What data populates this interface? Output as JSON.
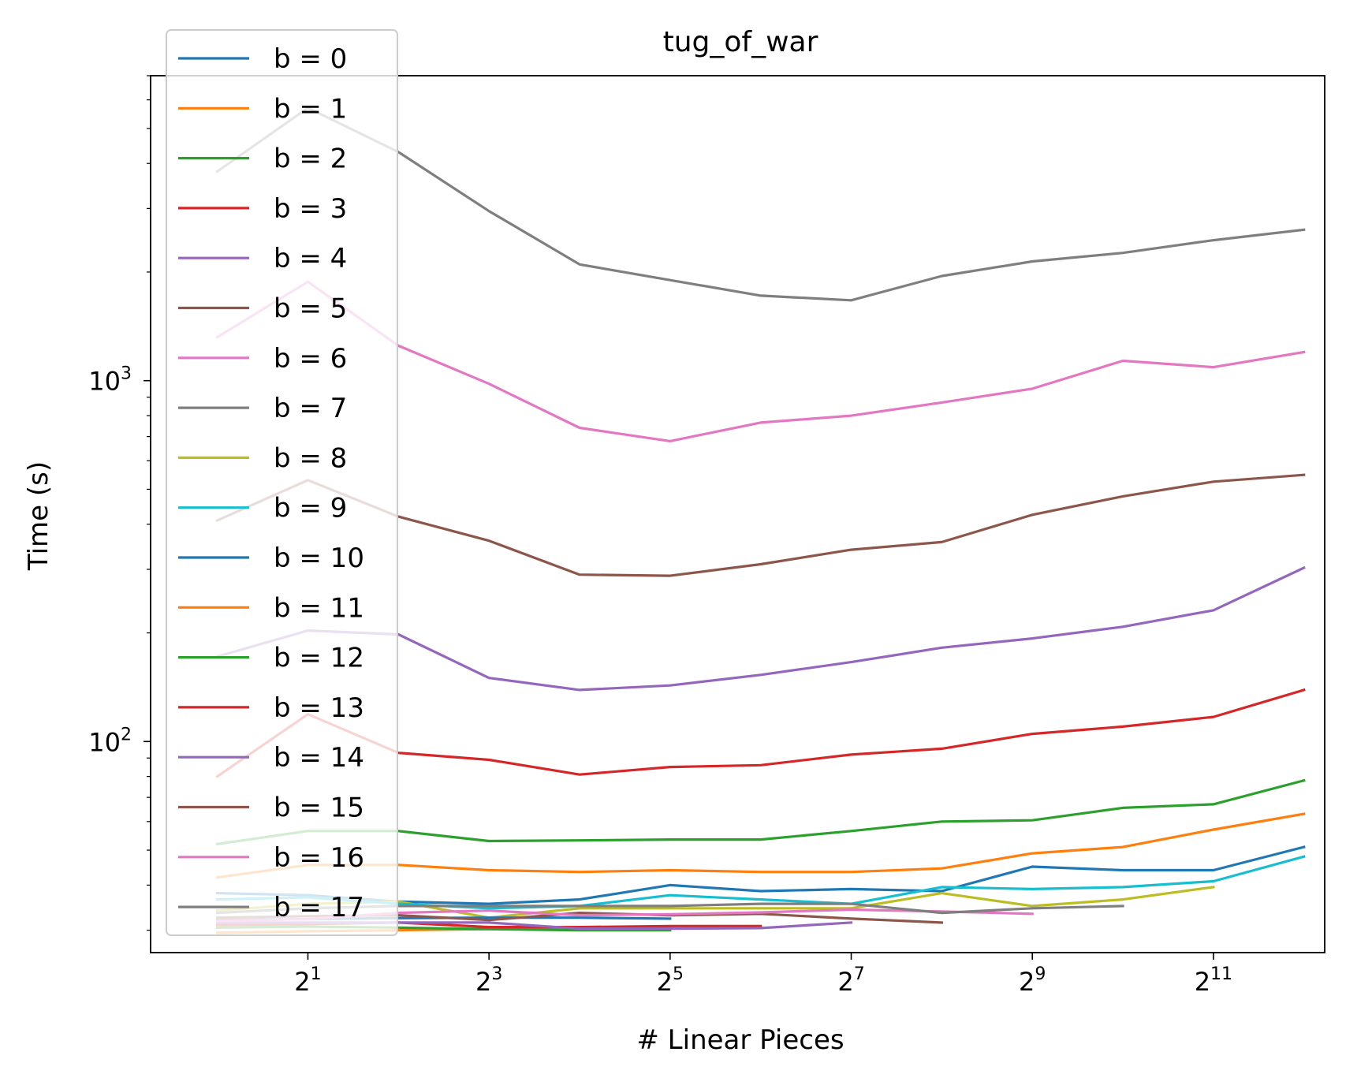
{
  "chart_data": {
    "type": "line",
    "title": "tug_of_war",
    "xlabel": "# Linear Pieces",
    "ylabel": "Time (s)",
    "x_scale": "log2",
    "y_scale": "log10",
    "xlim": [
      0.6,
      4800
    ],
    "ylim": [
      26,
      7000
    ],
    "x_ticks": [
      {
        "value": 2,
        "base": "2",
        "exp": "1"
      },
      {
        "value": 8,
        "base": "2",
        "exp": "3"
      },
      {
        "value": 32,
        "base": "2",
        "exp": "5"
      },
      {
        "value": 128,
        "base": "2",
        "exp": "7"
      },
      {
        "value": 512,
        "base": "2",
        "exp": "9"
      },
      {
        "value": 2048,
        "base": "2",
        "exp": "11"
      }
    ],
    "y_ticks": [
      {
        "value": 100,
        "base": "10",
        "exp": "2"
      },
      {
        "value": 1000,
        "base": "10",
        "exp": "3"
      }
    ],
    "grid": false,
    "legend_position": "top-left",
    "series": [
      {
        "name": "b = 0",
        "color": "#1f77b4",
        "x": [
          1,
          2,
          4,
          8,
          16,
          32,
          64,
          128,
          256,
          512,
          1024,
          2048,
          4096
        ],
        "values": [
          38,
          37.5,
          36,
          35.5,
          36.5,
          40,
          38.5,
          39,
          38.5,
          45,
          44,
          44,
          51
        ]
      },
      {
        "name": "b = 1",
        "color": "#ff7f0e",
        "x": [
          1,
          2,
          4,
          8,
          16,
          32,
          64,
          128,
          256,
          512,
          1024,
          2048,
          4096
        ],
        "values": [
          42,
          45.5,
          45.5,
          44,
          43.5,
          44,
          43.5,
          43.5,
          44.5,
          49,
          51,
          57,
          63
        ]
      },
      {
        "name": "b = 2",
        "color": "#2ca02c",
        "x": [
          1,
          2,
          4,
          8,
          16,
          32,
          64,
          128,
          256,
          512,
          1024,
          2048,
          4096
        ],
        "values": [
          52,
          56.5,
          56.5,
          53,
          53.2,
          53.5,
          53.5,
          56.5,
          60,
          60.5,
          65.5,
          67,
          78
        ]
      },
      {
        "name": "b = 3",
        "color": "#d62728",
        "x": [
          1,
          2,
          4,
          8,
          16,
          32,
          64,
          128,
          256,
          512,
          1024,
          2048,
          4096
        ],
        "values": [
          80,
          119,
          93,
          89,
          81,
          85,
          86,
          92,
          95.5,
          105,
          110,
          117,
          139
        ]
      },
      {
        "name": "b = 4",
        "color": "#9467bd",
        "x": [
          1,
          2,
          4,
          8,
          16,
          32,
          64,
          128,
          256,
          512,
          1024,
          2048,
          4096
        ],
        "values": [
          172,
          203,
          198,
          150,
          139,
          143,
          153,
          166,
          182,
          193,
          208,
          231,
          303
        ]
      },
      {
        "name": "b = 5",
        "color": "#8c564b",
        "x": [
          1,
          2,
          4,
          8,
          16,
          32,
          64,
          128,
          256,
          512,
          1024,
          2048,
          4096
        ],
        "values": [
          410,
          530,
          420,
          360,
          290,
          288,
          310,
          340,
          357,
          425,
          478,
          525,
          548
        ]
      },
      {
        "name": "b = 6",
        "color": "#e377c2",
        "x": [
          1,
          2,
          4,
          8,
          16,
          32,
          64,
          128,
          256,
          512,
          1024,
          2048,
          4096
        ],
        "values": [
          1320,
          1880,
          1250,
          980,
          740,
          680,
          765,
          800,
          870,
          950,
          1135,
          1090,
          1200
        ]
      },
      {
        "name": "b = 7",
        "color": "#7f7f7f",
        "x": [
          1,
          2,
          4,
          8,
          16,
          32,
          64,
          128,
          256,
          512,
          1024,
          2048,
          4096
        ],
        "values": [
          3800,
          5700,
          4300,
          2950,
          2100,
          1900,
          1720,
          1670,
          1950,
          2140,
          2260,
          2450,
          2620
        ]
      },
      {
        "name": "b = 8",
        "color": "#bcbd22",
        "x": [
          1,
          2,
          4,
          8,
          16,
          32,
          64,
          128,
          256,
          512,
          1024,
          2048
        ],
        "values": [
          34,
          35.5,
          36,
          32.5,
          34.5,
          34.5,
          34.5,
          34.5,
          38,
          35,
          36.5,
          39.5
        ]
      },
      {
        "name": "b = 9",
        "color": "#17becf",
        "x": [
          1,
          2,
          4,
          8,
          16,
          32,
          64,
          128,
          256,
          512,
          1024,
          2048,
          4096
        ],
        "values": [
          36.5,
          37,
          35.5,
          34.5,
          35,
          37.5,
          36.5,
          35.5,
          39.5,
          39,
          39.5,
          41,
          48
        ]
      },
      {
        "name": "b = 10",
        "color": "#1f77b4",
        "x": [
          1,
          2,
          4,
          8,
          16,
          32
        ],
        "values": [
          32,
          32.2,
          32.4,
          32.5,
          32.5,
          32.3
        ]
      },
      {
        "name": "b = 11",
        "color": "#ff7f0e",
        "x": [
          1,
          2,
          4,
          8,
          16,
          32
        ],
        "values": [
          29.5,
          29.8,
          30,
          30.2,
          30.4,
          30.6
        ]
      },
      {
        "name": "b = 12",
        "color": "#2ca02c",
        "x": [
          1,
          2,
          4,
          8,
          16,
          32
        ],
        "values": [
          30.5,
          30.7,
          30.5,
          30.2,
          30,
          30
        ]
      },
      {
        "name": "b = 13",
        "color": "#d62728",
        "x": [
          1,
          2,
          4,
          8,
          16,
          32,
          64
        ],
        "values": [
          31,
          31.2,
          31.5,
          30.6,
          30.6,
          30.8,
          30.8
        ]
      },
      {
        "name": "b = 14",
        "color": "#9467bd",
        "x": [
          1,
          2,
          4,
          8,
          16,
          32,
          64,
          128
        ],
        "values": [
          31.5,
          31.5,
          31.5,
          31.5,
          30.3,
          30.3,
          30.4,
          31.5
        ]
      },
      {
        "name": "b = 15",
        "color": "#8c564b",
        "x": [
          1,
          2,
          4,
          8,
          16,
          32,
          64,
          128,
          256
        ],
        "values": [
          32.5,
          32.8,
          33,
          32,
          33.5,
          33,
          33.3,
          32.3,
          31.5
        ]
      },
      {
        "name": "b = 16",
        "color": "#e377c2",
        "x": [
          1,
          2,
          4,
          8,
          16,
          32,
          64,
          128,
          256,
          512
        ],
        "values": [
          31.8,
          32.2,
          33.5,
          34,
          33,
          33.2,
          33.6,
          34.2,
          33.8,
          33.3
        ]
      },
      {
        "name": "b = 17",
        "color": "#7f7f7f",
        "x": [
          1,
          2,
          4,
          8,
          16,
          32,
          64,
          128,
          256,
          512,
          1024
        ],
        "values": [
          33.5,
          34.5,
          35,
          35,
          35,
          35,
          35.5,
          35.5,
          33.5,
          34.5,
          35
        ]
      }
    ]
  }
}
